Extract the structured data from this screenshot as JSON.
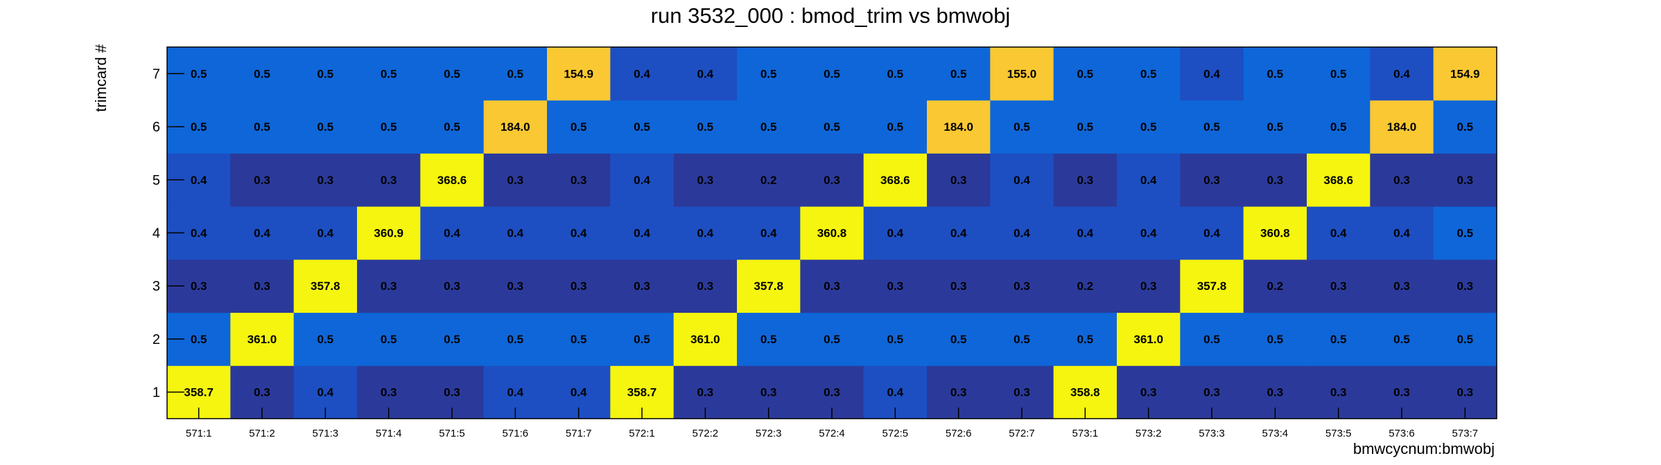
{
  "chart_data": {
    "type": "heatmap",
    "title": "run 3532_000 : bmod_trim vs bmwobj",
    "xlabel": "bmwcycnum:bmwobj",
    "ylabel": "trimcard #",
    "x_categories": [
      "571:1",
      "571:2",
      "571:3",
      "571:4",
      "571:5",
      "571:6",
      "571:7",
      "572:1",
      "572:2",
      "572:3",
      "572:4",
      "572:5",
      "572:6",
      "572:7",
      "573:1",
      "573:2",
      "573:3",
      "573:4",
      "573:5",
      "573:6",
      "573:7"
    ],
    "y_categories": [
      "1",
      "2",
      "3",
      "4",
      "5",
      "6",
      "7"
    ],
    "values": [
      [
        "358.7",
        "0.3",
        "0.4",
        "0.3",
        "0.3",
        "0.4",
        "0.4",
        "358.7",
        "0.3",
        "0.3",
        "0.3",
        "0.4",
        "0.3",
        "0.3",
        "358.8",
        "0.3",
        "0.3",
        "0.3",
        "0.3",
        "0.3",
        "0.3"
      ],
      [
        "0.5",
        "361.0",
        "0.5",
        "0.5",
        "0.5",
        "0.5",
        "0.5",
        "0.5",
        "361.0",
        "0.5",
        "0.5",
        "0.5",
        "0.5",
        "0.5",
        "0.5",
        "361.0",
        "0.5",
        "0.5",
        "0.5",
        "0.5",
        "0.5"
      ],
      [
        "0.3",
        "0.3",
        "357.8",
        "0.3",
        "0.3",
        "0.3",
        "0.3",
        "0.3",
        "0.3",
        "357.8",
        "0.3",
        "0.3",
        "0.3",
        "0.3",
        "0.2",
        "0.3",
        "357.8",
        "0.2",
        "0.3",
        "0.3",
        "0.3"
      ],
      [
        "0.4",
        "0.4",
        "0.4",
        "360.9",
        "0.4",
        "0.4",
        "0.4",
        "0.4",
        "0.4",
        "0.4",
        "360.8",
        "0.4",
        "0.4",
        "0.4",
        "0.4",
        "0.4",
        "0.4",
        "360.8",
        "0.4",
        "0.4",
        "0.5"
      ],
      [
        "0.4",
        "0.3",
        "0.3",
        "0.3",
        "368.6",
        "0.3",
        "0.3",
        "0.4",
        "0.3",
        "0.2",
        "0.3",
        "368.6",
        "0.3",
        "0.4",
        "0.3",
        "0.4",
        "0.3",
        "0.3",
        "368.6",
        "0.3",
        "0.3"
      ],
      [
        "0.5",
        "0.5",
        "0.5",
        "0.5",
        "0.5",
        "184.0",
        "0.5",
        "0.5",
        "0.5",
        "0.5",
        "0.5",
        "0.5",
        "184.0",
        "0.5",
        "0.5",
        "0.5",
        "0.5",
        "0.5",
        "0.5",
        "184.0",
        "0.5"
      ],
      [
        "0.5",
        "0.5",
        "0.5",
        "0.5",
        "0.5",
        "0.5",
        "154.9",
        "0.4",
        "0.4",
        "0.5",
        "0.5",
        "0.5",
        "0.5",
        "155.0",
        "0.5",
        "0.5",
        "0.4",
        "0.5",
        "0.5",
        "0.4",
        "154.9"
      ]
    ],
    "colorscale": [
      "#2b3a9a",
      "#1d4fc2",
      "#0f66d8",
      "#f9c832",
      "#f5f50f"
    ]
  }
}
